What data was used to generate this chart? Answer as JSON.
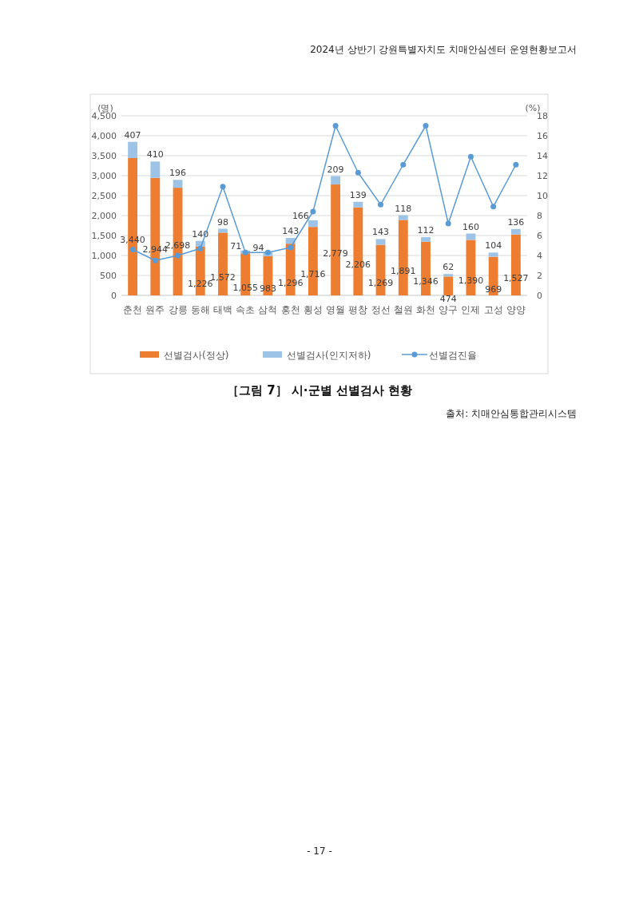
{
  "chart_data": {
    "type": "bar",
    "title": "［그림 7］ 시·군별 선별검사 현황",
    "annotations": [
      "2024년 상반기 강원특별자치도 치매안심센터 운영현황보고서",
      "출처: 치매안심통합관리시스템",
      "- 17 -"
    ],
    "ylabel": "(명)",
    "y2label": "(%)",
    "categories": [
      "춘천",
      "원주",
      "강릉",
      "동해",
      "태백",
      "속초",
      "삼척",
      "홍천",
      "횡성",
      "영월",
      "평창",
      "정선",
      "철원",
      "화천",
      "양구",
      "인제",
      "고성",
      "양양"
    ],
    "stacked": true,
    "legend": "bottom",
    "grid": "y",
    "series": [
      {
        "name": "선별검사(정상)",
        "type": "bar",
        "color": "#ed7d31",
        "values": [
          3440,
          2944,
          2698,
          1226,
          1572,
          1055,
          983,
          1296,
          1716,
          2779,
          2206,
          1269,
          1891,
          1346,
          474,
          1390,
          969,
          1527
        ],
        "value_labels": [
          "3,440",
          "2,944",
          "2,698",
          "1,226",
          "1,572",
          "1,055",
          "983",
          "1,296",
          "1,716",
          "2,779",
          "2,206",
          "1,269",
          "1,891",
          "1,346",
          "474",
          "1,390",
          "969",
          "1,527"
        ]
      },
      {
        "name": "선별검사(인지저하)",
        "type": "bar",
        "color": "#9dc3e6",
        "values": [
          407,
          410,
          196,
          140,
          98,
          71,
          94,
          143,
          166,
          209,
          139,
          143,
          118,
          112,
          62,
          160,
          104,
          136
        ],
        "value_labels": [
          "407",
          "410",
          "196",
          "140",
          "98",
          "71",
          "94",
          "143",
          "166",
          "209",
          "139",
          "143",
          "118",
          "112",
          "62",
          "160",
          "104",
          "136"
        ]
      },
      {
        "name": "선별검진율",
        "type": "line",
        "axis": "y2",
        "color": "#5b9bd5",
        "marker": "circle",
        "values": [
          4.6,
          3.5,
          4.0,
          4.7,
          10.9,
          4.3,
          4.3,
          4.8,
          8.4,
          17.0,
          12.3,
          9.1,
          13.1,
          17.0,
          7.2,
          13.9,
          8.9,
          13.1
        ]
      }
    ],
    "ylim": [
      0,
      4500
    ],
    "yticks": [
      0,
      500,
      {
        "value": 1000,
        "label": "1,000"
      },
      {
        "value": 1500,
        "label": "1,500"
      },
      {
        "value": 2000,
        "label": "2,000"
      },
      {
        "value": 2500,
        "label": "2,500"
      },
      {
        "value": 3000,
        "label": "3,000"
      },
      {
        "value": 3500,
        "label": "3,500"
      },
      {
        "value": 4000,
        "label": "4,000"
      },
      {
        "value": 4500,
        "label": "4,500"
      }
    ],
    "y2lim": [
      0,
      18
    ],
    "y2ticks": [
      0,
      2,
      4,
      6,
      8,
      10,
      12,
      14,
      16,
      18
    ]
  }
}
